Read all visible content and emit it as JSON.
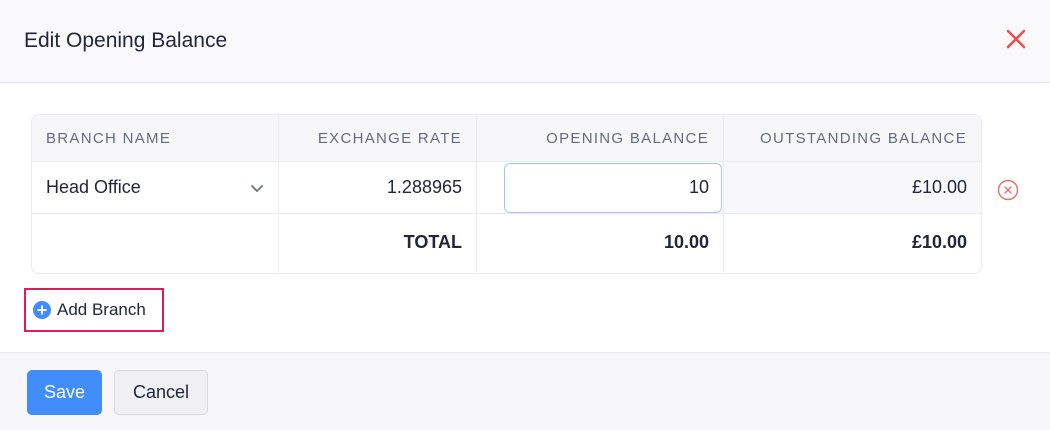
{
  "dialog": {
    "title": "Edit Opening Balance"
  },
  "table": {
    "headers": [
      "BRANCH NAME",
      "EXCHANGE RATE",
      "OPENING BALANCE",
      "OUTSTANDING BALANCE"
    ],
    "rows": [
      {
        "branch": "Head Office",
        "exchange_rate": "1.288965",
        "opening_balance": "10",
        "outstanding_balance": "£10.00"
      }
    ],
    "total": {
      "label": "TOTAL",
      "opening_balance": "10.00",
      "outstanding_balance": "£10.00"
    }
  },
  "add_branch_label": "Add Branch",
  "footer": {
    "save_label": "Save",
    "cancel_label": "Cancel"
  },
  "colors": {
    "accent": "#408dfb",
    "danger": "#f04b4b",
    "highlight": "#e0195a"
  }
}
